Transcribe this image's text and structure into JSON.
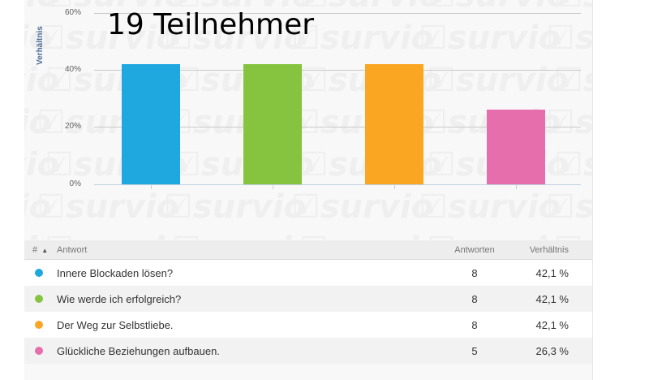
{
  "chart_data": {
    "type": "bar",
    "title": "19 Teilnehmer",
    "ylabel": "Verhältnis",
    "xlabel": "",
    "ylim": [
      0,
      60
    ],
    "yticks": [
      "0%",
      "20%",
      "40%",
      "60%"
    ],
    "categories": [
      "Innere Blockaden lösen?",
      "Wie werde ich erfolgreich?",
      "Der Weg zur Selbstliebe.",
      "Glückliche Beziehungen aufbauen."
    ],
    "values": [
      42.1,
      42.1,
      42.1,
      26.3
    ],
    "colors": [
      "#1fa8e0",
      "#86c440",
      "#fba623",
      "#e66ead"
    ],
    "grid": true,
    "watermark": "survio"
  },
  "chart": {
    "title": "19 Teilnehmer",
    "y_title": "Verhältnis",
    "y_ticks": {
      "t60": "60%",
      "t40": "40%",
      "t20": "20%",
      "t0": "0%"
    }
  },
  "table": {
    "headers": {
      "num": "#",
      "sort_icon": "▲",
      "answer": "Antwort",
      "count": "Antworten",
      "ratio": "Verhältnis"
    },
    "rows": [
      {
        "answer": "Innere Blockaden lösen?",
        "count": "8",
        "ratio": "42,1 %",
        "color": "#1fa8e0"
      },
      {
        "answer": "Wie werde ich erfolgreich?",
        "count": "8",
        "ratio": "42,1 %",
        "color": "#86c440"
      },
      {
        "answer": "Der Weg zur Selbstliebe.",
        "count": "8",
        "ratio": "42,1 %",
        "color": "#fba623"
      },
      {
        "answer": "Glückliche Beziehungen aufbauen.",
        "count": "5",
        "ratio": "26,3 %",
        "color": "#e66ead"
      }
    ]
  }
}
